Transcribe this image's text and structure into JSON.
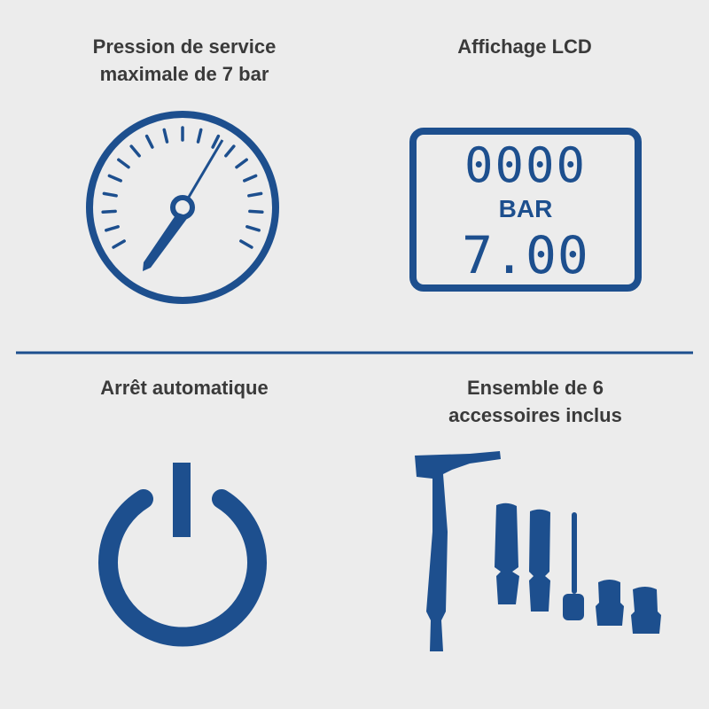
{
  "panels": [
    {
      "title_line1": "Pression de service",
      "title_line2": "maximale de 7 bar",
      "icon": "pressure-gauge-icon"
    },
    {
      "title_line1": "Affichage LCD",
      "icon": "lcd-display-icon",
      "lcd": {
        "top": "0000",
        "unit": "BAR",
        "value": "7.00"
      }
    },
    {
      "title_line1": "Arrêt automatique",
      "icon": "power-icon"
    },
    {
      "title_line1": "Ensemble de 6",
      "title_line2": "accessoires inclus",
      "icon": "accessories-icon"
    }
  ],
  "colors": {
    "accent": "#1d4f8e",
    "background": "#ececec",
    "text": "#3a3a3a"
  }
}
